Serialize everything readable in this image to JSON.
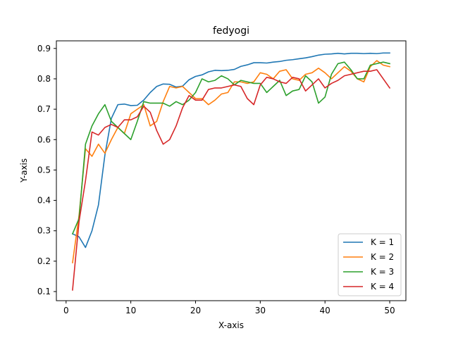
{
  "chart_data": {
    "type": "line",
    "title": "fedyogi",
    "xlabel": "X-axis",
    "ylabel": "Y-axis",
    "xlim": [
      -1.5,
      52.5
    ],
    "ylim": [
      0.07,
      0.925
    ],
    "xticks": [
      0,
      10,
      20,
      30,
      40,
      50
    ],
    "yticks": [
      0.1,
      0.2,
      0.3,
      0.4,
      0.5,
      0.6,
      0.7,
      0.8,
      0.9
    ],
    "grid": false,
    "legend_position": "lower-right",
    "x": [
      1,
      2,
      3,
      4,
      5,
      6,
      7,
      8,
      9,
      10,
      11,
      12,
      13,
      14,
      15,
      16,
      17,
      18,
      19,
      20,
      21,
      22,
      23,
      24,
      25,
      26,
      27,
      28,
      29,
      30,
      31,
      32,
      33,
      34,
      35,
      36,
      37,
      38,
      39,
      40,
      41,
      42,
      43,
      44,
      45,
      46,
      47,
      48,
      49,
      50
    ],
    "series": [
      {
        "name": "K = 1",
        "color": "#1f77b4",
        "values": [
          0.29,
          0.28,
          0.245,
          0.3,
          0.385,
          0.55,
          0.67,
          0.715,
          0.717,
          0.712,
          0.713,
          0.73,
          0.755,
          0.775,
          0.783,
          0.782,
          0.773,
          0.776,
          0.797,
          0.808,
          0.813,
          0.823,
          0.828,
          0.827,
          0.828,
          0.831,
          0.841,
          0.846,
          0.853,
          0.853,
          0.852,
          0.855,
          0.857,
          0.861,
          0.863,
          0.866,
          0.869,
          0.873,
          0.878,
          0.881,
          0.882,
          0.884,
          0.882,
          0.884,
          0.884,
          0.883,
          0.884,
          0.883,
          0.885,
          0.885
        ]
      },
      {
        "name": "K = 2",
        "color": "#ff7f0e",
        "values": [
          0.195,
          0.35,
          0.57,
          0.545,
          0.585,
          0.555,
          0.6,
          0.64,
          0.62,
          0.685,
          0.7,
          0.715,
          0.645,
          0.66,
          0.725,
          0.775,
          0.77,
          0.775,
          0.755,
          0.735,
          0.735,
          0.715,
          0.73,
          0.75,
          0.755,
          0.79,
          0.79,
          0.785,
          0.79,
          0.82,
          0.815,
          0.8,
          0.825,
          0.83,
          0.8,
          0.795,
          0.815,
          0.82,
          0.835,
          0.82,
          0.8,
          0.82,
          0.84,
          0.825,
          0.8,
          0.79,
          0.84,
          0.86,
          0.845,
          0.84
        ]
      },
      {
        "name": "K = 3",
        "color": "#2ca02c",
        "values": [
          0.29,
          0.34,
          0.585,
          0.645,
          0.685,
          0.715,
          0.66,
          0.64,
          0.62,
          0.6,
          0.66,
          0.725,
          0.72,
          0.72,
          0.72,
          0.71,
          0.725,
          0.715,
          0.73,
          0.755,
          0.8,
          0.79,
          0.795,
          0.81,
          0.8,
          0.78,
          0.795,
          0.79,
          0.785,
          0.785,
          0.755,
          0.775,
          0.795,
          0.745,
          0.76,
          0.765,
          0.81,
          0.79,
          0.72,
          0.74,
          0.815,
          0.85,
          0.855,
          0.83,
          0.8,
          0.8,
          0.845,
          0.85,
          0.855,
          0.85
        ]
      },
      {
        "name": "K = 4",
        "color": "#d62728",
        "values": [
          0.105,
          0.33,
          0.465,
          0.625,
          0.615,
          0.64,
          0.65,
          0.64,
          0.665,
          0.665,
          0.675,
          0.71,
          0.69,
          0.63,
          0.585,
          0.6,
          0.645,
          0.705,
          0.745,
          0.73,
          0.73,
          0.765,
          0.77,
          0.77,
          0.775,
          0.78,
          0.775,
          0.735,
          0.715,
          0.78,
          0.805,
          0.8,
          0.79,
          0.785,
          0.805,
          0.8,
          0.76,
          0.78,
          0.8,
          0.77,
          0.785,
          0.795,
          0.81,
          0.815,
          0.82,
          0.825,
          0.825,
          0.83,
          0.8,
          0.77
        ]
      }
    ]
  }
}
